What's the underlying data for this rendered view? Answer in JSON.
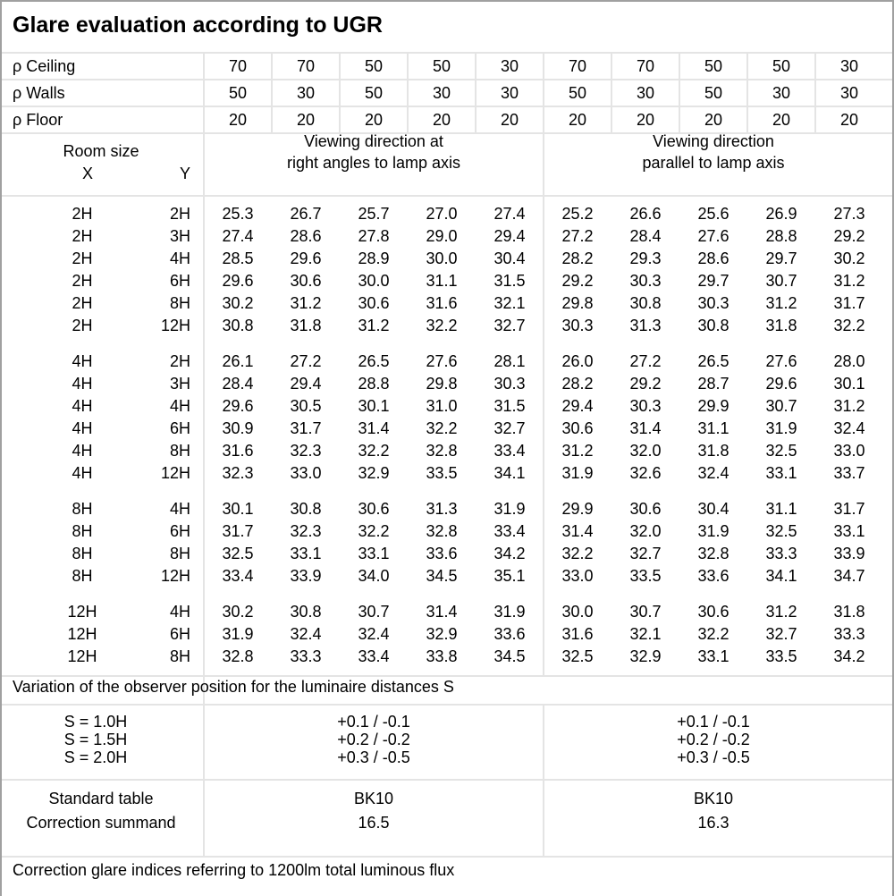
{
  "title": "Glare evaluation according to UGR",
  "reflectance": {
    "rows": [
      {
        "label": "ρ Ceiling",
        "values": [
          "70",
          "70",
          "50",
          "50",
          "30",
          "70",
          "70",
          "50",
          "50",
          "30"
        ]
      },
      {
        "label": "ρ Walls",
        "values": [
          "50",
          "30",
          "50",
          "30",
          "30",
          "50",
          "30",
          "50",
          "30",
          "30"
        ]
      },
      {
        "label": "ρ Floor",
        "values": [
          "20",
          "20",
          "20",
          "20",
          "20",
          "20",
          "20",
          "20",
          "20",
          "20"
        ]
      }
    ]
  },
  "header": {
    "room_size": "Room size",
    "x": "X",
    "y": "Y",
    "right_angles": [
      "Viewing direction at",
      "right angles to lamp axis"
    ],
    "parallel": [
      "Viewing direction",
      "parallel to lamp axis"
    ]
  },
  "groups": [
    {
      "rows": [
        {
          "x": "2H",
          "y": "2H",
          "v": [
            "25.3",
            "26.7",
            "25.7",
            "27.0",
            "27.4",
            "25.2",
            "26.6",
            "25.6",
            "26.9",
            "27.3"
          ]
        },
        {
          "x": "2H",
          "y": "3H",
          "v": [
            "27.4",
            "28.6",
            "27.8",
            "29.0",
            "29.4",
            "27.2",
            "28.4",
            "27.6",
            "28.8",
            "29.2"
          ]
        },
        {
          "x": "2H",
          "y": "4H",
          "v": [
            "28.5",
            "29.6",
            "28.9",
            "30.0",
            "30.4",
            "28.2",
            "29.3",
            "28.6",
            "29.7",
            "30.2"
          ]
        },
        {
          "x": "2H",
          "y": "6H",
          "v": [
            "29.6",
            "30.6",
            "30.0",
            "31.1",
            "31.5",
            "29.2",
            "30.3",
            "29.7",
            "30.7",
            "31.2"
          ]
        },
        {
          "x": "2H",
          "y": "8H",
          "v": [
            "30.2",
            "31.2",
            "30.6",
            "31.6",
            "32.1",
            "29.8",
            "30.8",
            "30.3",
            "31.2",
            "31.7"
          ]
        },
        {
          "x": "2H",
          "y": "12H",
          "v": [
            "30.8",
            "31.8",
            "31.2",
            "32.2",
            "32.7",
            "30.3",
            "31.3",
            "30.8",
            "31.8",
            "32.2"
          ]
        }
      ]
    },
    {
      "rows": [
        {
          "x": "4H",
          "y": "2H",
          "v": [
            "26.1",
            "27.2",
            "26.5",
            "27.6",
            "28.1",
            "26.0",
            "27.2",
            "26.5",
            "27.6",
            "28.0"
          ]
        },
        {
          "x": "4H",
          "y": "3H",
          "v": [
            "28.4",
            "29.4",
            "28.8",
            "29.8",
            "30.3",
            "28.2",
            "29.2",
            "28.7",
            "29.6",
            "30.1"
          ]
        },
        {
          "x": "4H",
          "y": "4H",
          "v": [
            "29.6",
            "30.5",
            "30.1",
            "31.0",
            "31.5",
            "29.4",
            "30.3",
            "29.9",
            "30.7",
            "31.2"
          ]
        },
        {
          "x": "4H",
          "y": "6H",
          "v": [
            "30.9",
            "31.7",
            "31.4",
            "32.2",
            "32.7",
            "30.6",
            "31.4",
            "31.1",
            "31.9",
            "32.4"
          ]
        },
        {
          "x": "4H",
          "y": "8H",
          "v": [
            "31.6",
            "32.3",
            "32.2",
            "32.8",
            "33.4",
            "31.2",
            "32.0",
            "31.8",
            "32.5",
            "33.0"
          ]
        },
        {
          "x": "4H",
          "y": "12H",
          "v": [
            "32.3",
            "33.0",
            "32.9",
            "33.5",
            "34.1",
            "31.9",
            "32.6",
            "32.4",
            "33.1",
            "33.7"
          ]
        }
      ]
    },
    {
      "rows": [
        {
          "x": "8H",
          "y": "4H",
          "v": [
            "30.1",
            "30.8",
            "30.6",
            "31.3",
            "31.9",
            "29.9",
            "30.6",
            "30.4",
            "31.1",
            "31.7"
          ]
        },
        {
          "x": "8H",
          "y": "6H",
          "v": [
            "31.7",
            "32.3",
            "32.2",
            "32.8",
            "33.4",
            "31.4",
            "32.0",
            "31.9",
            "32.5",
            "33.1"
          ]
        },
        {
          "x": "8H",
          "y": "8H",
          "v": [
            "32.5",
            "33.1",
            "33.1",
            "33.6",
            "34.2",
            "32.2",
            "32.7",
            "32.8",
            "33.3",
            "33.9"
          ]
        },
        {
          "x": "8H",
          "y": "12H",
          "v": [
            "33.4",
            "33.9",
            "34.0",
            "34.5",
            "35.1",
            "33.0",
            "33.5",
            "33.6",
            "34.1",
            "34.7"
          ]
        }
      ]
    },
    {
      "rows": [
        {
          "x": "12H",
          "y": "4H",
          "v": [
            "30.2",
            "30.8",
            "30.7",
            "31.4",
            "31.9",
            "30.0",
            "30.7",
            "30.6",
            "31.2",
            "31.8"
          ]
        },
        {
          "x": "12H",
          "y": "6H",
          "v": [
            "31.9",
            "32.4",
            "32.4",
            "32.9",
            "33.6",
            "31.6",
            "32.1",
            "32.2",
            "32.7",
            "33.3"
          ]
        },
        {
          "x": "12H",
          "y": "8H",
          "v": [
            "32.8",
            "33.3",
            "33.4",
            "33.8",
            "34.5",
            "32.5",
            "32.9",
            "33.1",
            "33.5",
            "34.2"
          ]
        }
      ]
    }
  ],
  "variation": {
    "caption": "Variation of the observer position for the luminaire distances S",
    "rows": [
      {
        "s": "S = 1.0H",
        "right": "+0.1 / -0.1",
        "parallel": "+0.1 / -0.1"
      },
      {
        "s": "S = 1.5H",
        "right": "+0.2 / -0.2",
        "parallel": "+0.2 / -0.2"
      },
      {
        "s": "S = 2.0H",
        "right": "+0.3 / -0.5",
        "parallel": "+0.3 / -0.5"
      }
    ]
  },
  "standard": {
    "label1": "Standard table",
    "label2": "Correction summand",
    "right_table": "BK10",
    "right_summand": "16.5",
    "parallel_table": "BK10",
    "parallel_summand": "16.3"
  },
  "footer": "Correction glare indices referring to 1200lm total luminous flux"
}
